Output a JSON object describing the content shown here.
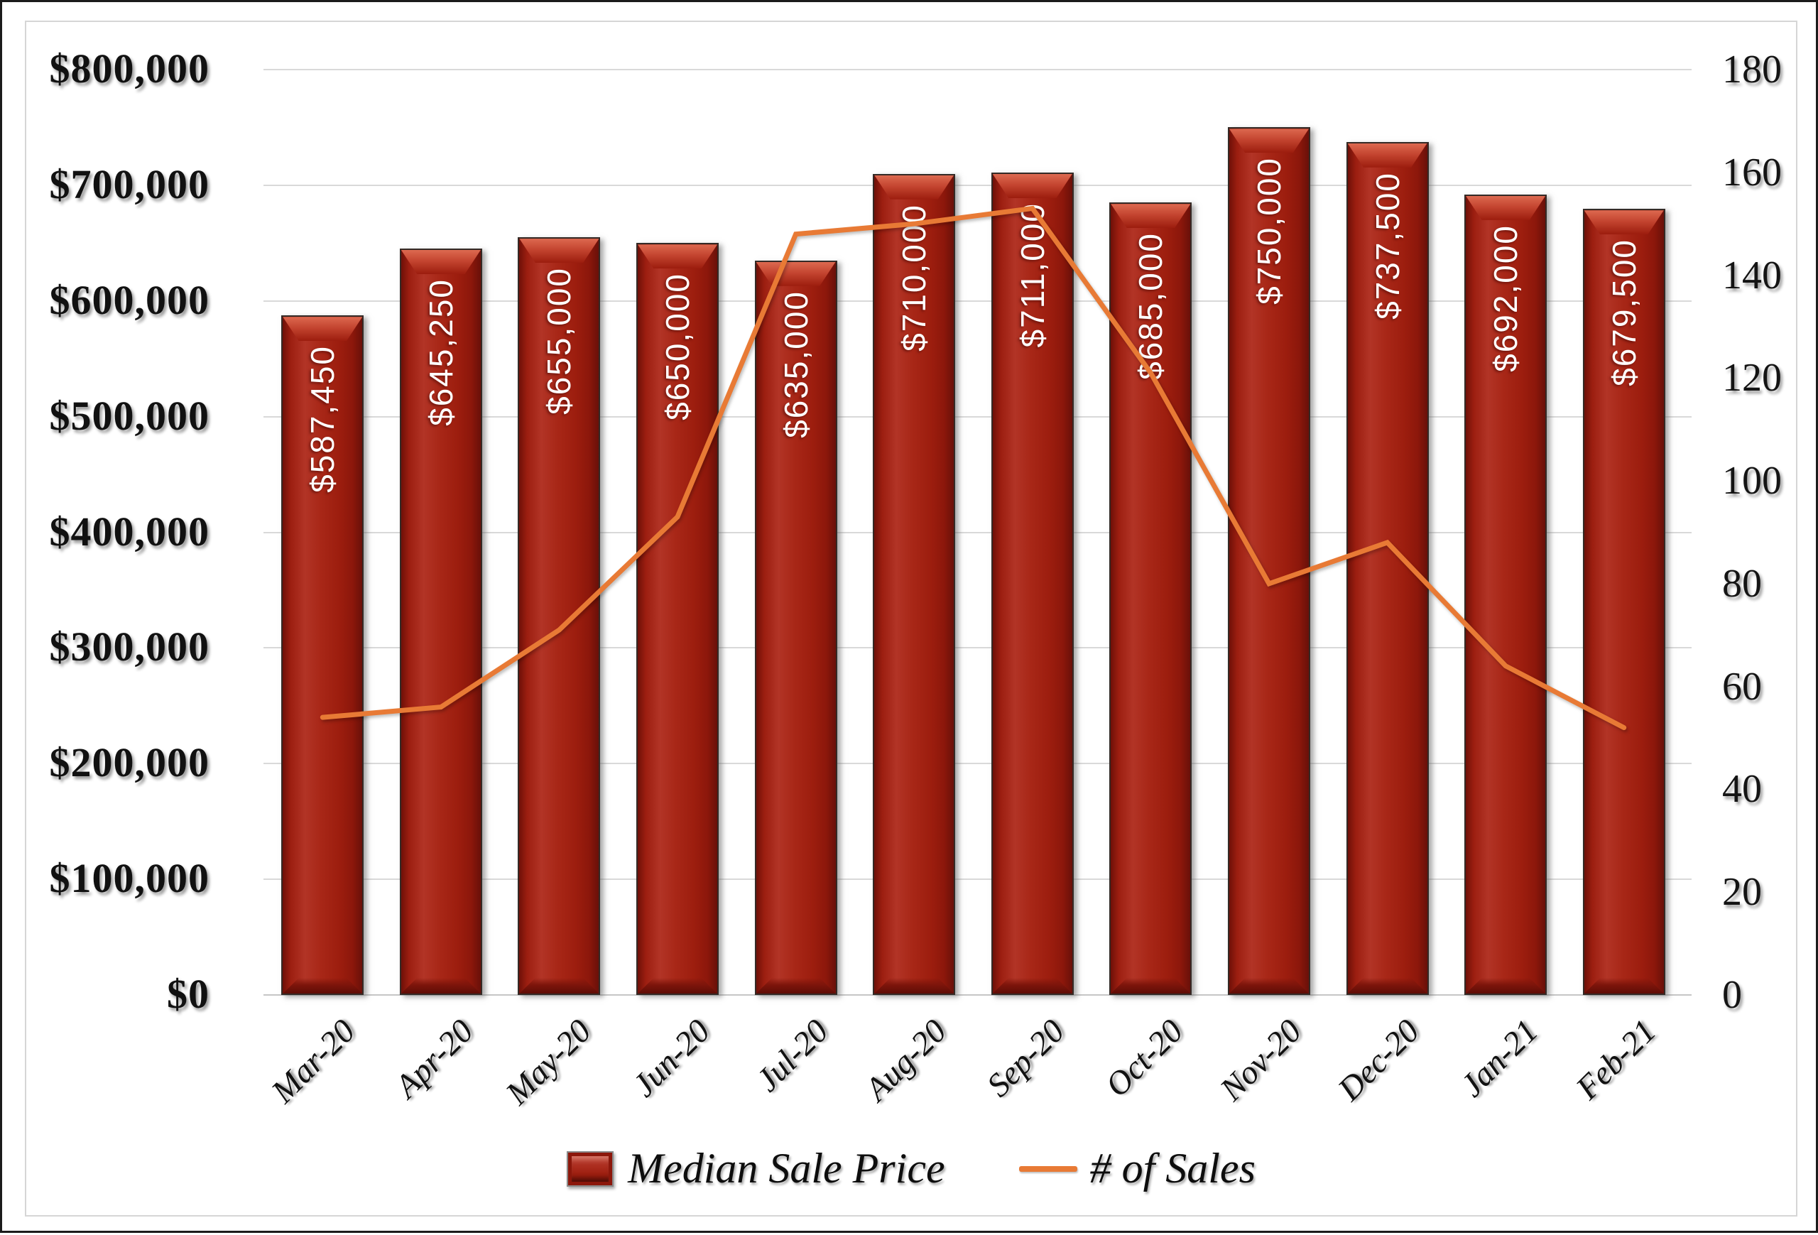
{
  "chart_data": {
    "type": "bar",
    "subtype": "combo-bar-line",
    "title": "",
    "categories": [
      "Mar-20",
      "Apr-20",
      "May-20",
      "Jun-20",
      "Jul-20",
      "Aug-20",
      "Sep-20",
      "Oct-20",
      "Nov-20",
      "Dec-20",
      "Jan-21",
      "Feb-21"
    ],
    "series": [
      {
        "name": "Median Sale Price",
        "chart_type": "bar",
        "axis": "left",
        "color": "#A32113",
        "values": [
          587450,
          645250,
          655000,
          650000,
          635000,
          710000,
          711000,
          685000,
          750000,
          737500,
          692000,
          679500
        ],
        "data_labels": [
          "$587,450",
          "$645,250",
          "$655,000",
          "$650,000",
          "$635,000",
          "$710,000",
          "$711,000",
          "$685,000",
          "$750,000",
          "$737,500",
          "$692,000",
          "$679,500"
        ]
      },
      {
        "name": "# of Sales",
        "chart_type": "line",
        "axis": "right",
        "color": "#E87A35",
        "values": [
          54,
          56,
          71,
          93,
          148,
          150,
          153,
          121,
          80,
          88,
          64,
          52
        ]
      }
    ],
    "left_axis": {
      "min": 0,
      "max": 800000,
      "step": 100000,
      "tick_labels": [
        "$0",
        "$100,000",
        "$200,000",
        "$300,000",
        "$400,000",
        "$500,000",
        "$600,000",
        "$700,000",
        "$800,000"
      ]
    },
    "right_axis": {
      "min": 0,
      "max": 180,
      "step": 20,
      "tick_labels": [
        "0",
        "20",
        "40",
        "60",
        "80",
        "100",
        "120",
        "140",
        "160",
        "180"
      ]
    },
    "grid": true,
    "legend_position": "bottom"
  },
  "legend": {
    "bar_label": "Median Sale Price",
    "line_label": "# of Sales"
  },
  "colors": {
    "bar_fill": "#A32113",
    "bar_edge": "#342A26",
    "line": "#E87A35",
    "gridline": "#D9D9D9",
    "axis_line": "#C6C6C6",
    "frame_border": "#D6D6D6",
    "outer_border": "#1B1B1B",
    "bar_label_text": "#FFFFFF",
    "axis_text": "#111111"
  }
}
